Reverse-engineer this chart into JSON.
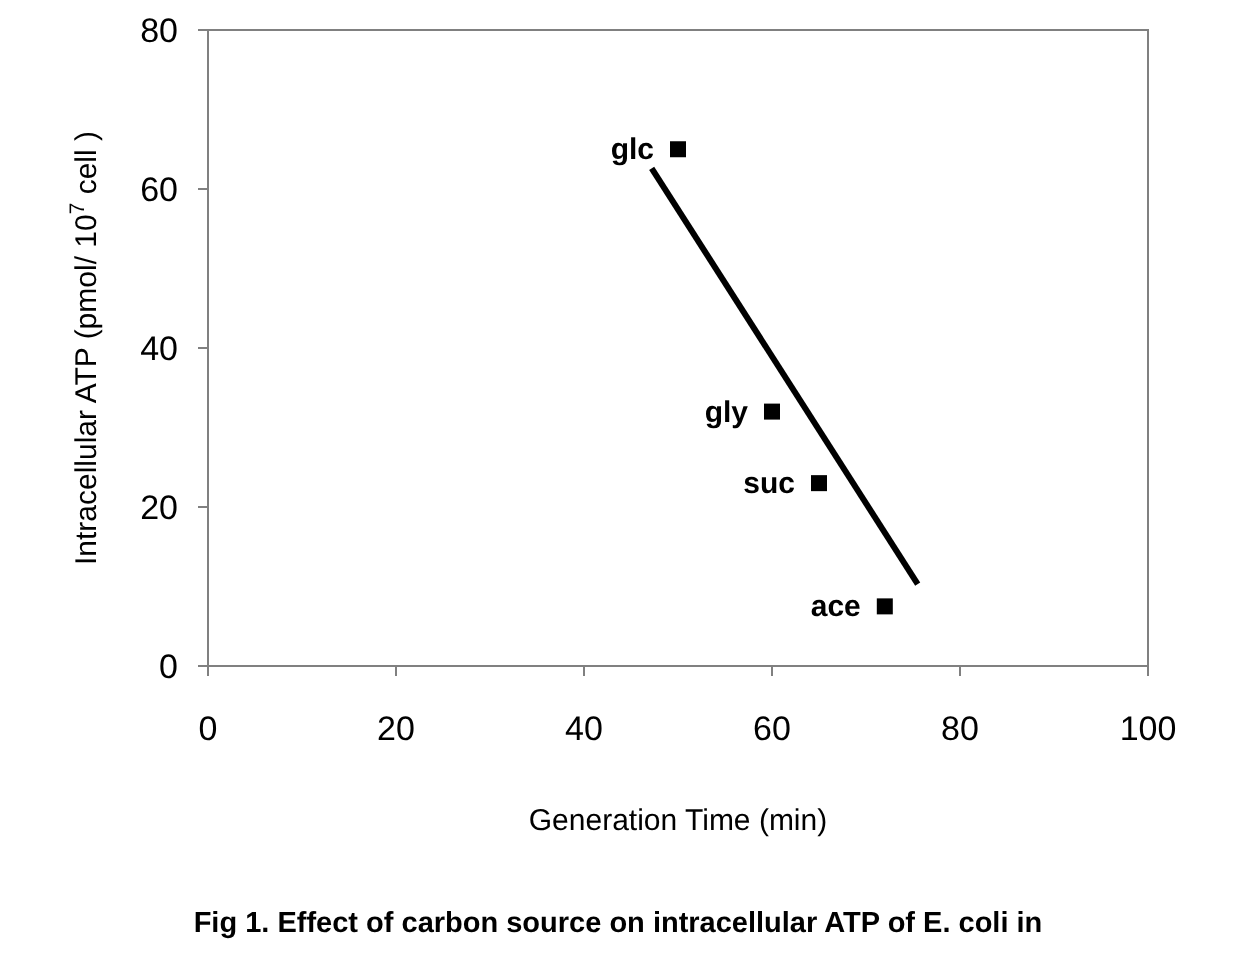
{
  "chart_data": {
    "type": "scatter",
    "xlabel": "Generation Time (min)",
    "ylabel": "Intracellular ATP (pmol/ 10$^{7}$ cell )",
    "xlim": [
      0,
      100
    ],
    "xticks": [
      0,
      20,
      40,
      60,
      80,
      100
    ],
    "ylim": [
      0,
      80
    ],
    "yticks": [
      0,
      20,
      40,
      60,
      80
    ],
    "grid": false,
    "series": [
      {
        "color": "#000000",
        "marker": "square",
        "x": [
          50,
          60,
          65,
          72
        ],
        "values": [
          65,
          32,
          23,
          7.5
        ]
      },
      {
        "type": "line",
        "color": "#000000",
        "marker": "none",
        "line_style": "solid",
        "x": [
          47.2,
          75.5
        ],
        "values": [
          62.6,
          10.3
        ]
      }
    ],
    "annotations": [
      {
        "text": "glc",
        "x": 50,
        "y": 65
      },
      {
        "text": "gly",
        "x": 60,
        "y": 32
      },
      {
        "text": "suc",
        "x": 65,
        "y": 23
      },
      {
        "text": "ace",
        "x": 72,
        "y": 7.5
      },
      "Fig 1. Effect of carbon source on intracellular ATP of E. coli in"
    ]
  }
}
